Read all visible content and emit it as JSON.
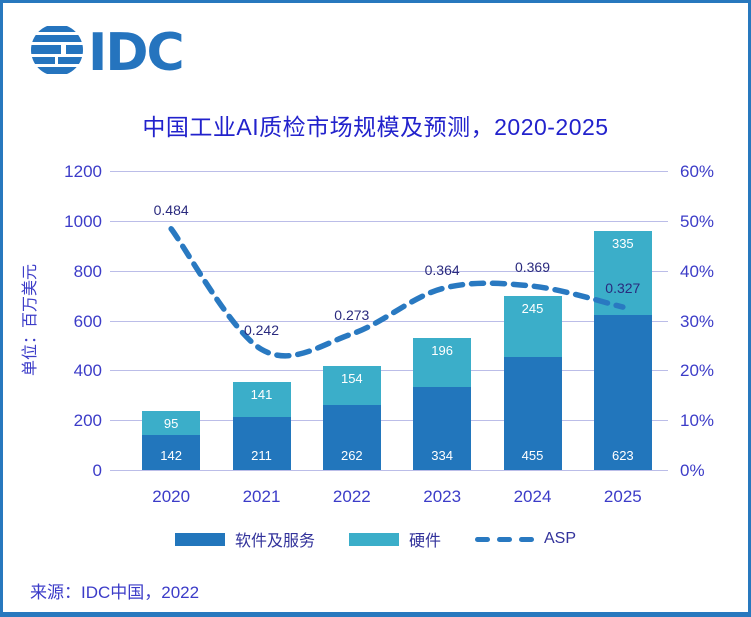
{
  "logo_text": "IDC",
  "title": "中国工业AI质检市场规模及预测，2020-2025",
  "source": "来源：IDC中国，2022",
  "colors": {
    "frame": "#2878BE",
    "logo": "#2574BE",
    "title_text": "#2222CC",
    "axis_text": "#3C3CC8",
    "legend_text": "#32329B",
    "asp_label_text": "#2A2A7E",
    "bar_software": "#2276BC",
    "bar_hardware": "#3BAEC9",
    "asp_line": "#2979C1",
    "gridline": "#BBBDE8",
    "bar_value_text": "#FFFFFF"
  },
  "chart_data": {
    "type": "combo: stacked bar + smoothed dashed line",
    "categories": [
      "2020",
      "2021",
      "2022",
      "2023",
      "2024",
      "2025"
    ],
    "series": [
      {
        "name": "软件及服务",
        "type": "bar",
        "stack": true,
        "color": "#2276BC",
        "values": [
          142,
          211,
          262,
          334,
          455,
          623
        ]
      },
      {
        "name": "硬件",
        "type": "bar",
        "stack": true,
        "color": "#3BAEC9",
        "values": [
          95,
          141,
          154,
          196,
          245,
          335
        ]
      },
      {
        "name": "ASP",
        "type": "line",
        "dashed": true,
        "smooth": true,
        "axis": "right",
        "color": "#2979C1",
        "values": [
          0.484,
          0.242,
          0.273,
          0.364,
          0.369,
          0.327
        ],
        "labels": [
          "0.484",
          "0.242",
          "0.273",
          "0.364",
          "0.369",
          "0.327"
        ]
      }
    ],
    "left_axis": {
      "title": "单位：百万美元",
      "min": 0,
      "max": 1200,
      "step": 200,
      "tick_labels": [
        "1200",
        "1000",
        "800",
        "600",
        "400",
        "200",
        "0"
      ]
    },
    "right_axis": {
      "min": 0,
      "max": 0.6,
      "step": 0.1,
      "format": "percent",
      "tick_labels": [
        "60%",
        "50%",
        "40%",
        "30%",
        "20%",
        "10%",
        "0%"
      ]
    },
    "grid": true,
    "legend_position": "bottom"
  }
}
